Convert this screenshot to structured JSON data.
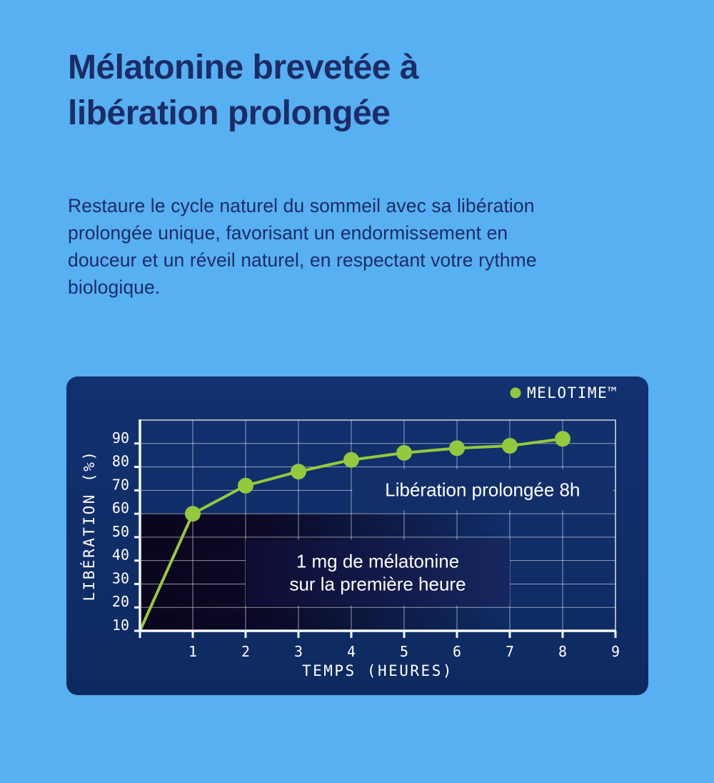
{
  "colors": {
    "page_bg": "#57b0f1",
    "ink": "#1c2c67",
    "card_bg_top": "#123170",
    "card_bg_bottom": "#0d2a60",
    "grid": "rgba(255,255,255,0.55)",
    "frame": "rgba(255,255,255,0.85)",
    "axis": "#f6f8fc",
    "tick_label": "#ffffff",
    "series_green": "#94c93e",
    "shade_dark": "#0b051e",
    "annotation_text": "#ffffff",
    "panel_8h_bg": "#122f6a",
    "panel_1mg_bg_start": "#0e0c32",
    "panel_1mg_bg_end": "#16275f"
  },
  "heading": {
    "lines": [
      "Mélatonine brevetée à",
      "libération prolongée"
    ]
  },
  "body": {
    "lines": [
      "Restaure le cycle naturel du sommeil avec sa libération",
      "prolongée unique, favorisant un endormissement en",
      "douceur et un réveil naturel, en respectant votre rythme",
      "biologique."
    ]
  },
  "chart_data": {
    "type": "line",
    "legend": {
      "label": "MELOTIME™",
      "marker_color": "#94c93e",
      "position": "top-right"
    },
    "xlabel": "TEMPS (HEURES)",
    "ylabel": "LIBÉRATION (%)",
    "xlim": [
      0,
      9
    ],
    "ylim": [
      10,
      100
    ],
    "x_ticks": [
      1,
      2,
      3,
      4,
      5,
      6,
      7,
      8,
      9
    ],
    "y_ticks": [
      10,
      20,
      30,
      40,
      50,
      60,
      70,
      80,
      90
    ],
    "grid": true,
    "series": [
      {
        "name": "MELOTIME™",
        "color": "#94c93e",
        "x": [
          0,
          1,
          2,
          3,
          4,
          5,
          6,
          7,
          8
        ],
        "y": [
          10,
          60,
          72,
          78,
          83,
          86,
          88,
          89,
          92
        ],
        "marker_hours": [
          1,
          2,
          3,
          4,
          5,
          6,
          7,
          8
        ]
      }
    ],
    "shaded_region": {
      "x": [
        0,
        7
      ],
      "y": [
        10,
        60
      ]
    },
    "annotations": [
      {
        "id": "prolonged-8h",
        "lines": [
          "Libération prolongée 8h"
        ],
        "box_x": [
          4.02,
          8.95
        ],
        "box_y": [
          61.5,
          79.0
        ],
        "bg": "solid"
      },
      {
        "id": "1mg-first-hour",
        "lines": [
          "1 mg de mélatonine",
          "sur la première heure"
        ],
        "box_x": [
          2.0,
          7.0
        ],
        "box_y": [
          20.8,
          48.8
        ],
        "bg": "gradient"
      }
    ]
  }
}
